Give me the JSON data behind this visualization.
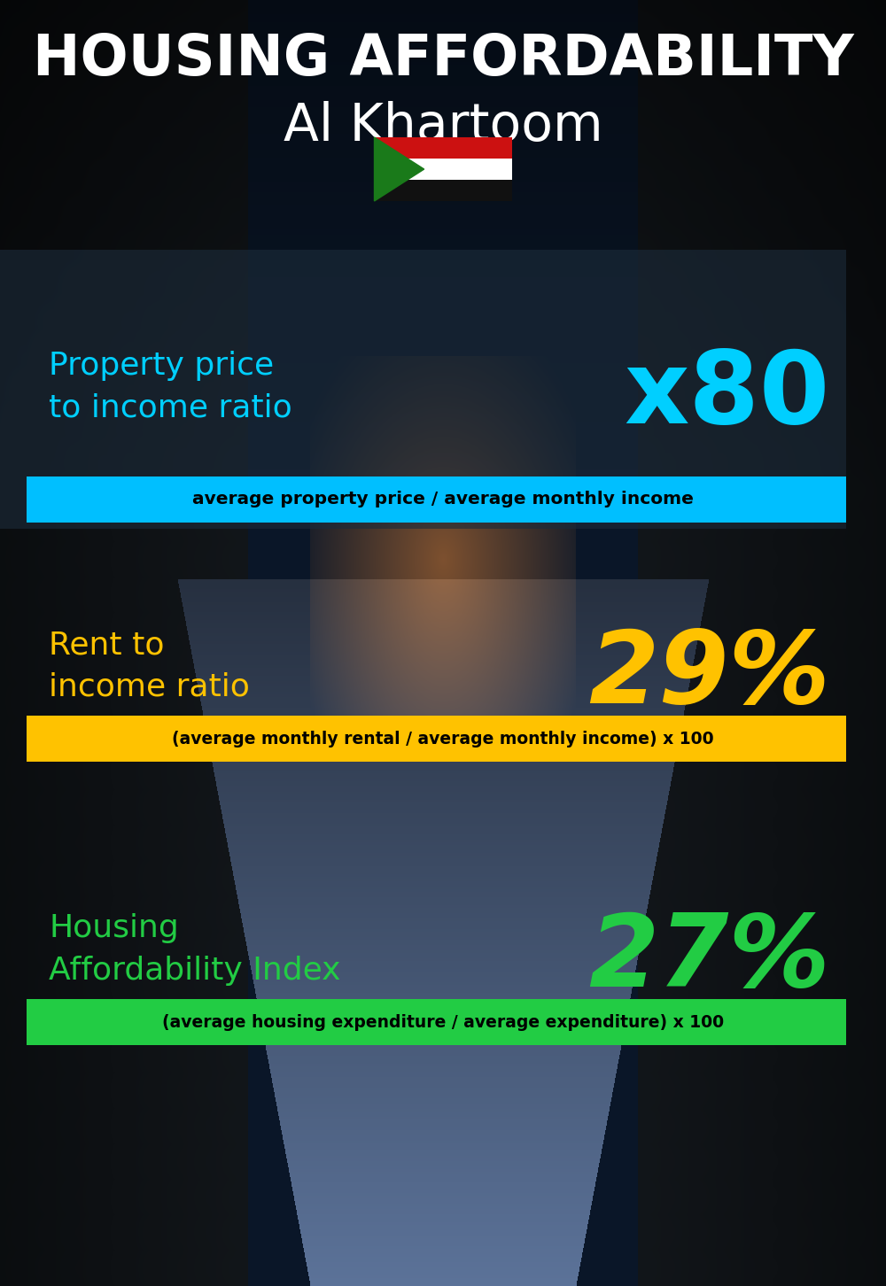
{
  "title_line1": "HOUSING AFFORDABILITY",
  "title_line2": "Al Khartoom",
  "bg_color": "#050e1a",
  "section1_label": "Property price\nto income ratio",
  "section1_value": "x80",
  "section1_label_color": "#00cfff",
  "section1_value_color": "#00cfff",
  "section1_formula": "average property price / average monthly income",
  "section1_formula_bg": "#00bfff",
  "section2_label": "Rent to\nincome ratio",
  "section2_value": "29%",
  "section2_label_color": "#ffc200",
  "section2_value_color": "#ffc200",
  "section2_formula": "(average monthly rental / average monthly income) x 100",
  "section2_formula_bg": "#ffc200",
  "section3_label": "Housing\nAffordability Index",
  "section3_value": "27%",
  "section3_label_color": "#22cc44",
  "section3_value_color": "#22cc44",
  "section3_formula": "(average housing expenditure / average expenditure) x 100",
  "section3_formula_bg": "#22cc44",
  "title_color": "#ffffff",
  "formula_text_color": "#000000",
  "panel1_color": "#1c2b3a",
  "panel1_alpha": 0.65,
  "flag_red": "#cc1111",
  "flag_white": "#ffffff",
  "flag_black": "#111111",
  "flag_green": "#1a7a1a"
}
